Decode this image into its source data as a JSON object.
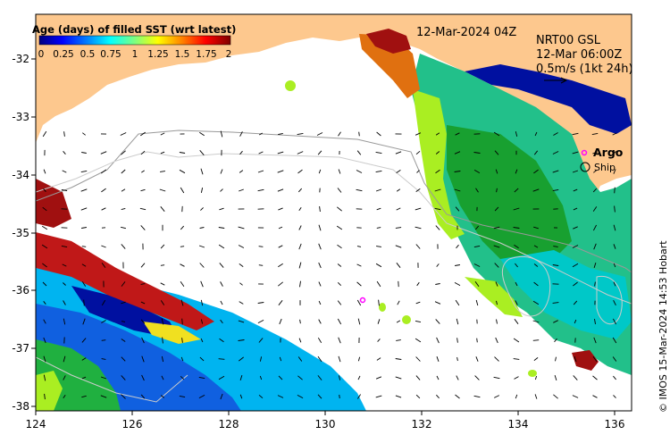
{
  "map": {
    "date_label": "12-Mar-2024 04Z",
    "product": {
      "line1": "NRT00 GSL",
      "line2": "12-Mar 06:00Z",
      "line3": "0.5m/s (1kt 24h)"
    },
    "legend": {
      "argo": "Argo",
      "ship": "Ship"
    },
    "colorbar": {
      "title": "Age (days) of filled SST (wrt latest)",
      "tick_labels": [
        "0",
        "0.25",
        "0.5",
        "0.75",
        "1",
        "1.25",
        "1.5",
        "1.75",
        "2"
      ]
    },
    "x_axis": {
      "tick_labels": [
        "124",
        "126",
        "128",
        "130",
        "132",
        "134",
        "136"
      ]
    },
    "y_axis": {
      "tick_labels": [
        "-32",
        "-33",
        "-34",
        "-35",
        "-36",
        "-37",
        "-38"
      ]
    },
    "credit": "© IMOS 15-Mar-2024 14:53 Hobart",
    "colors": {
      "land": "#fdc88e",
      "ocean_blank": "#ffffff",
      "argo_marker": "#ff00ff"
    }
  }
}
